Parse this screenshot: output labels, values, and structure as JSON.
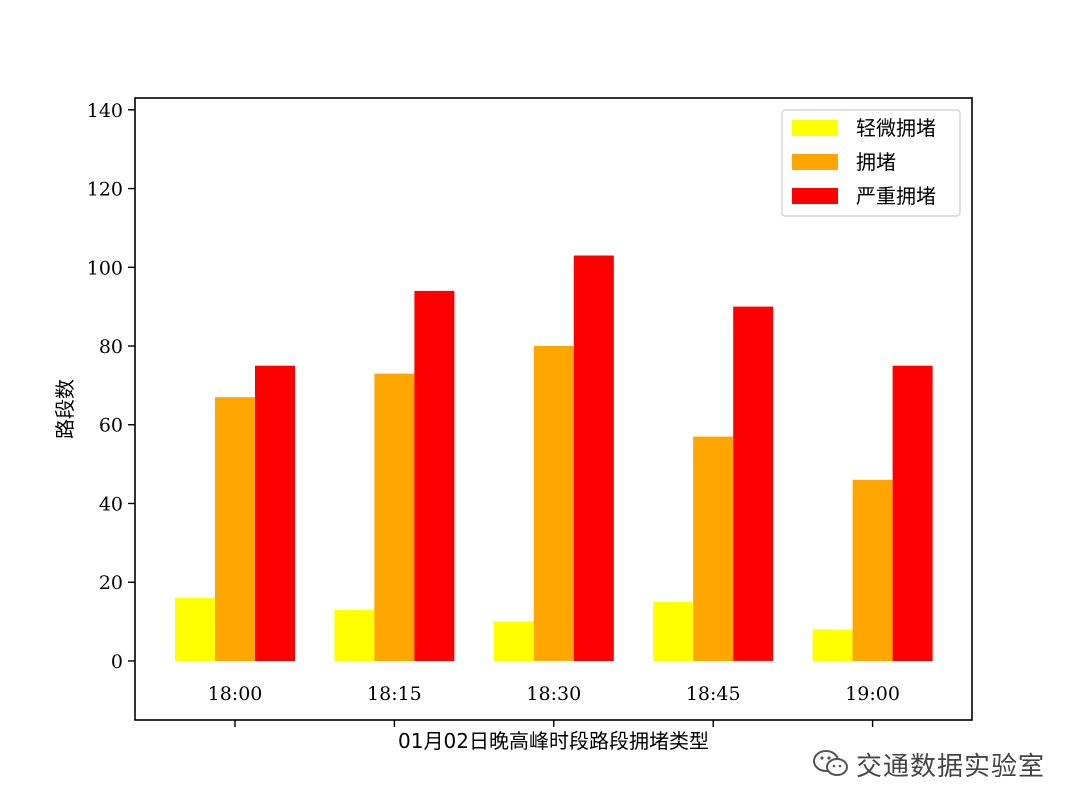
{
  "chart_data": {
    "type": "bar",
    "title": "",
    "xlabel": "01月02日晚高峰时段路段拥堵类型",
    "ylabel": "路段数",
    "categories": [
      "18:00",
      "18:15",
      "18:30",
      "18:45",
      "19:00"
    ],
    "series": [
      {
        "name": "轻微拥堵",
        "color": "#ffff00",
        "values": [
          16,
          13,
          10,
          15,
          8
        ]
      },
      {
        "name": "拥堵",
        "color": "#ffa500",
        "values": [
          67,
          73,
          80,
          57,
          46
        ]
      },
      {
        "name": "严重拥堵",
        "color": "#ff0000",
        "values": [
          75,
          94,
          103,
          90,
          75
        ]
      }
    ],
    "ylim": [
      -15,
      143
    ],
    "yticks": [
      0,
      20,
      40,
      60,
      80,
      100,
      120,
      140
    ],
    "legend_position": "top-right",
    "grid": false
  },
  "watermark": {
    "icon": "wechat-icon",
    "text": "交通数据实验室"
  }
}
